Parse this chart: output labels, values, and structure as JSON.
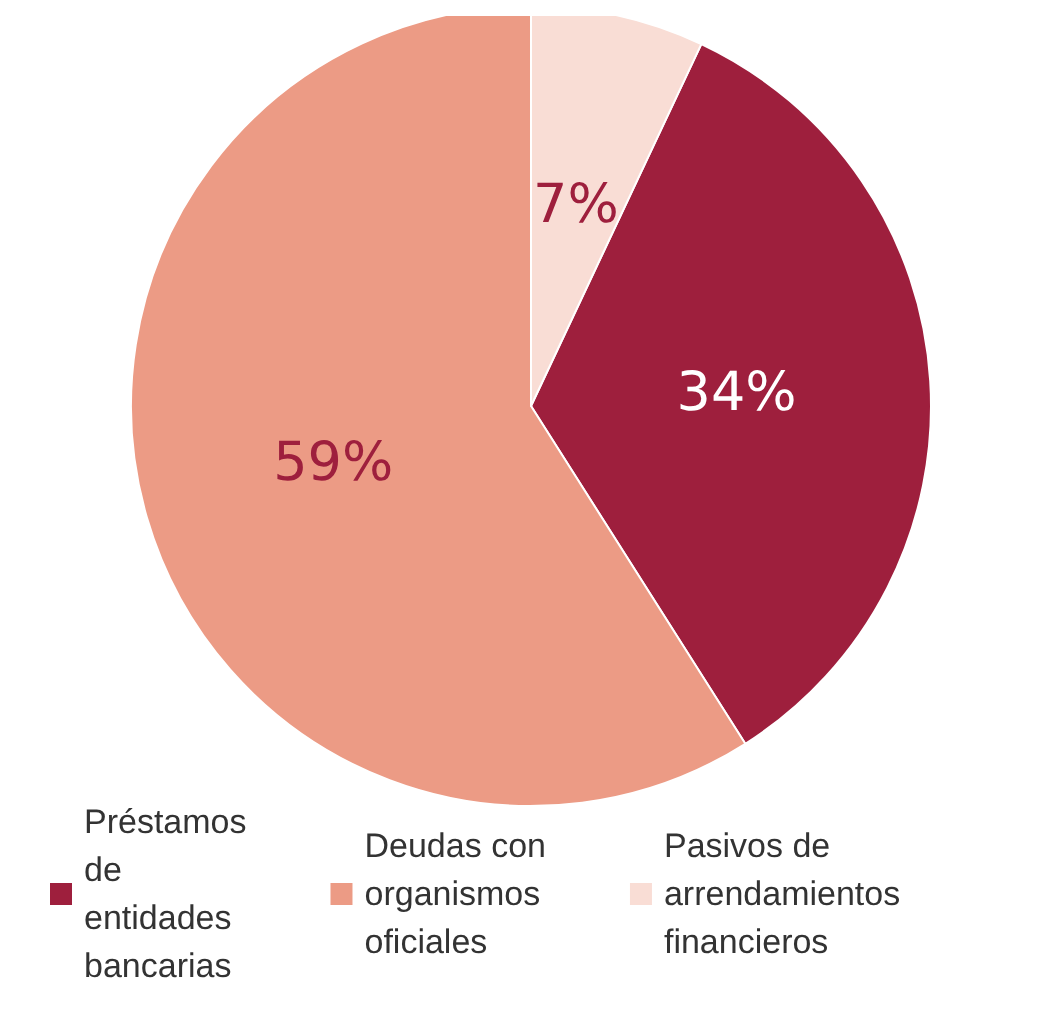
{
  "chart_data": {
    "type": "pie",
    "categories": [
      "Préstamos de entidades bancarias",
      "Deudas con organismos oficiales",
      "Pasivos de arrendamientos financieros"
    ],
    "values": [
      34,
      59,
      7
    ],
    "colors": [
      "#9e1f3d",
      "#ec9b85",
      "#f9ddd5"
    ],
    "value_labels": [
      "34%",
      "59%",
      "7%"
    ],
    "legend": "bottom"
  }
}
